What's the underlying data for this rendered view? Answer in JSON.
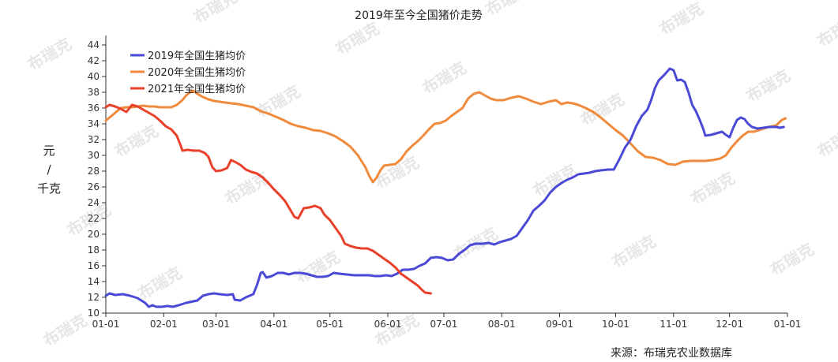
{
  "watermark": {
    "text": "布瑞克"
  },
  "source": {
    "text": "来源：布瑞克农业数据库"
  },
  "colors": {
    "s2019": "#4a4ad6",
    "s2020": "#f08a3c",
    "s2021": "#e8402a"
  },
  "chart_data": {
    "type": "line",
    "title": "2019年至今全国猪价走势",
    "xlabel": "",
    "ylabel": [
      "元",
      "/",
      "千克"
    ],
    "x_unit": "day_of_year",
    "x_range": [
      1,
      366
    ],
    "ylim": [
      10,
      45
    ],
    "y_ticks": [
      10,
      12,
      14,
      16,
      18,
      20,
      22,
      24,
      26,
      28,
      30,
      32,
      34,
      36,
      38,
      40,
      42,
      44
    ],
    "x_tick_labels": [
      "01-01",
      "02-01",
      "03-01",
      "04-01",
      "05-01",
      "06-01",
      "07-01",
      "08-01",
      "09-01",
      "10-01",
      "11-01",
      "12-01",
      "01-01"
    ],
    "x_tick_days": [
      1,
      32,
      60,
      91,
      121,
      152,
      182,
      213,
      244,
      274,
      305,
      335,
      366
    ],
    "grid": false,
    "legend_position": "top-left",
    "series": [
      {
        "name": "2019年全国生猪均价",
        "color": "#4a4ad6",
        "points": [
          [
            1,
            12.2
          ],
          [
            3,
            12.5
          ],
          [
            6,
            12.3
          ],
          [
            10,
            12.4
          ],
          [
            14,
            12.2
          ],
          [
            18,
            11.9
          ],
          [
            20,
            11.6
          ],
          [
            22,
            11.3
          ],
          [
            24,
            10.8
          ],
          [
            26,
            11.0
          ],
          [
            28,
            10.8
          ],
          [
            31,
            10.8
          ],
          [
            34,
            10.9
          ],
          [
            37,
            10.8
          ],
          [
            40,
            11.0
          ],
          [
            44,
            11.3
          ],
          [
            48,
            11.5
          ],
          [
            50,
            11.6
          ],
          [
            53,
            12.2
          ],
          [
            56,
            12.4
          ],
          [
            59,
            12.5
          ],
          [
            62,
            12.4
          ],
          [
            66,
            12.3
          ],
          [
            69,
            12.4
          ],
          [
            70,
            11.7
          ],
          [
            73,
            11.6
          ],
          [
            76,
            12.0
          ],
          [
            79,
            12.3
          ],
          [
            80,
            12.4
          ],
          [
            82,
            13.6
          ],
          [
            84,
            15.1
          ],
          [
            85,
            15.2
          ],
          [
            87,
            14.5
          ],
          [
            90,
            14.7
          ],
          [
            93,
            15.1
          ],
          [
            96,
            15.1
          ],
          [
            99,
            14.9
          ],
          [
            102,
            15.1
          ],
          [
            105,
            15.1
          ],
          [
            108,
            15.0
          ],
          [
            111,
            14.8
          ],
          [
            114,
            14.6
          ],
          [
            117,
            14.6
          ],
          [
            120,
            14.7
          ],
          [
            123,
            15.1
          ],
          [
            126,
            15.0
          ],
          [
            130,
            14.9
          ],
          [
            134,
            14.8
          ],
          [
            138,
            14.8
          ],
          [
            142,
            14.8
          ],
          [
            145,
            14.7
          ],
          [
            148,
            14.7
          ],
          [
            151,
            14.8
          ],
          [
            154,
            14.7
          ],
          [
            157,
            15.0
          ],
          [
            160,
            15.5
          ],
          [
            163,
            15.5
          ],
          [
            166,
            15.6
          ],
          [
            169,
            16.0
          ],
          [
            172,
            16.3
          ],
          [
            175,
            17.0
          ],
          [
            178,
            17.1
          ],
          [
            181,
            17.0
          ],
          [
            184,
            16.7
          ],
          [
            187,
            16.8
          ],
          [
            190,
            17.5
          ],
          [
            193,
            18.0
          ],
          [
            196,
            18.6
          ],
          [
            199,
            18.8
          ],
          [
            203,
            18.8
          ],
          [
            206,
            18.9
          ],
          [
            209,
            18.7
          ],
          [
            212,
            19.0
          ],
          [
            215,
            19.2
          ],
          [
            218,
            19.4
          ],
          [
            221,
            19.8
          ],
          [
            224,
            20.8
          ],
          [
            227,
            21.8
          ],
          [
            230,
            23.0
          ],
          [
            233,
            23.6
          ],
          [
            236,
            24.3
          ],
          [
            239,
            25.3
          ],
          [
            242,
            26.0
          ],
          [
            245,
            26.5
          ],
          [
            248,
            26.9
          ],
          [
            251,
            27.2
          ],
          [
            254,
            27.6
          ],
          [
            257,
            27.7
          ],
          [
            260,
            27.8
          ],
          [
            263,
            28.0
          ],
          [
            266,
            28.1
          ],
          [
            270,
            28.2
          ],
          [
            273,
            28.2
          ],
          [
            276,
            29.5
          ],
          [
            279,
            31.0
          ],
          [
            282,
            32.0
          ],
          [
            285,
            33.7
          ],
          [
            288,
            35.0
          ],
          [
            291,
            35.8
          ],
          [
            293,
            37.0
          ],
          [
            295,
            38.5
          ],
          [
            297,
            39.5
          ],
          [
            300,
            40.2
          ],
          [
            303,
            41.0
          ],
          [
            305,
            40.8
          ],
          [
            307,
            39.5
          ],
          [
            309,
            39.6
          ],
          [
            311,
            39.3
          ],
          [
            313,
            38.0
          ],
          [
            315,
            36.4
          ],
          [
            317,
            35.6
          ],
          [
            319,
            34.5
          ],
          [
            321,
            33.3
          ],
          [
            322,
            32.5
          ],
          [
            325,
            32.6
          ],
          [
            328,
            32.8
          ],
          [
            331,
            33.0
          ],
          [
            333,
            32.6
          ],
          [
            335,
            32.3
          ],
          [
            337,
            33.5
          ],
          [
            339,
            34.5
          ],
          [
            341,
            34.8
          ],
          [
            343,
            34.6
          ],
          [
            345,
            34.0
          ],
          [
            347,
            33.6
          ],
          [
            350,
            33.4
          ],
          [
            353,
            33.5
          ],
          [
            356,
            33.6
          ],
          [
            360,
            33.6
          ],
          [
            362,
            33.5
          ],
          [
            364,
            33.6
          ]
        ]
      },
      {
        "name": "2020年全国生猪均价",
        "color": "#f08a3c",
        "points": [
          [
            1,
            34.4
          ],
          [
            3,
            34.8
          ],
          [
            6,
            35.4
          ],
          [
            9,
            36.0
          ],
          [
            12,
            36.1
          ],
          [
            15,
            36.1
          ],
          [
            18,
            36.2
          ],
          [
            21,
            36.3
          ],
          [
            24,
            36.2
          ],
          [
            27,
            36.2
          ],
          [
            30,
            36.1
          ],
          [
            33,
            36.1
          ],
          [
            36,
            36.1
          ],
          [
            39,
            36.4
          ],
          [
            42,
            37.0
          ],
          [
            44,
            37.6
          ],
          [
            46,
            38.0
          ],
          [
            48,
            38.2
          ],
          [
            50,
            37.8
          ],
          [
            53,
            37.4
          ],
          [
            56,
            37.1
          ],
          [
            59,
            36.9
          ],
          [
            62,
            36.8
          ],
          [
            65,
            36.7
          ],
          [
            68,
            36.6
          ],
          [
            72,
            36.5
          ],
          [
            76,
            36.3
          ],
          [
            80,
            36.1
          ],
          [
            84,
            35.6
          ],
          [
            88,
            35.3
          ],
          [
            92,
            34.9
          ],
          [
            96,
            34.5
          ],
          [
            100,
            34.0
          ],
          [
            104,
            33.7
          ],
          [
            108,
            33.5
          ],
          [
            112,
            33.2
          ],
          [
            116,
            33.1
          ],
          [
            120,
            32.8
          ],
          [
            124,
            32.4
          ],
          [
            128,
            31.8
          ],
          [
            132,
            31.1
          ],
          [
            136,
            30.0
          ],
          [
            140,
            28.5
          ],
          [
            142,
            27.4
          ],
          [
            144,
            26.6
          ],
          [
            146,
            27.2
          ],
          [
            148,
            28.1
          ],
          [
            150,
            28.7
          ],
          [
            153,
            28.8
          ],
          [
            156,
            28.9
          ],
          [
            159,
            29.5
          ],
          [
            162,
            30.5
          ],
          [
            165,
            31.2
          ],
          [
            168,
            31.8
          ],
          [
            171,
            32.5
          ],
          [
            174,
            33.3
          ],
          [
            177,
            34.0
          ],
          [
            180,
            34.1
          ],
          [
            183,
            34.4
          ],
          [
            186,
            35.0
          ],
          [
            189,
            35.5
          ],
          [
            192,
            36.0
          ],
          [
            195,
            37.2
          ],
          [
            198,
            37.8
          ],
          [
            201,
            38.0
          ],
          [
            204,
            37.6
          ],
          [
            207,
            37.2
          ],
          [
            210,
            37.0
          ],
          [
            214,
            37.0
          ],
          [
            218,
            37.3
          ],
          [
            222,
            37.5
          ],
          [
            226,
            37.2
          ],
          [
            230,
            36.8
          ],
          [
            234,
            36.5
          ],
          [
            238,
            36.8
          ],
          [
            242,
            37.0
          ],
          [
            245,
            36.5
          ],
          [
            248,
            36.7
          ],
          [
            251,
            36.6
          ],
          [
            254,
            36.4
          ],
          [
            258,
            36.0
          ],
          [
            262,
            35.5
          ],
          [
            266,
            34.8
          ],
          [
            270,
            34.0
          ],
          [
            274,
            33.2
          ],
          [
            278,
            32.5
          ],
          [
            282,
            31.5
          ],
          [
            286,
            30.5
          ],
          [
            290,
            29.8
          ],
          [
            294,
            29.7
          ],
          [
            298,
            29.4
          ],
          [
            302,
            28.9
          ],
          [
            306,
            28.8
          ],
          [
            310,
            29.2
          ],
          [
            314,
            29.3
          ],
          [
            318,
            29.3
          ],
          [
            322,
            29.3
          ],
          [
            326,
            29.4
          ],
          [
            330,
            29.6
          ],
          [
            333,
            30.0
          ],
          [
            336,
            31.0
          ],
          [
            339,
            31.8
          ],
          [
            342,
            32.5
          ],
          [
            345,
            33.0
          ],
          [
            348,
            33.0
          ],
          [
            352,
            33.3
          ],
          [
            356,
            33.6
          ],
          [
            360,
            33.8
          ],
          [
            363,
            34.5
          ],
          [
            365,
            34.7
          ]
        ]
      },
      {
        "name": "2021年全国生猪均价",
        "color": "#e8402a",
        "points": [
          [
            1,
            36.1
          ],
          [
            3,
            36.4
          ],
          [
            6,
            36.2
          ],
          [
            9,
            35.9
          ],
          [
            12,
            35.5
          ],
          [
            15,
            36.4
          ],
          [
            18,
            36.2
          ],
          [
            21,
            35.8
          ],
          [
            24,
            35.4
          ],
          [
            27,
            35.0
          ],
          [
            30,
            34.4
          ],
          [
            33,
            33.7
          ],
          [
            36,
            33.3
          ],
          [
            39,
            32.5
          ],
          [
            41,
            31.3
          ],
          [
            42,
            30.6
          ],
          [
            45,
            30.7
          ],
          [
            48,
            30.6
          ],
          [
            51,
            30.6
          ],
          [
            54,
            30.3
          ],
          [
            56,
            29.8
          ],
          [
            58,
            28.5
          ],
          [
            60,
            28.0
          ],
          [
            63,
            28.1
          ],
          [
            66,
            28.4
          ],
          [
            68,
            29.4
          ],
          [
            70,
            29.2
          ],
          [
            73,
            28.8
          ],
          [
            76,
            28.2
          ],
          [
            79,
            27.9
          ],
          [
            82,
            27.7
          ],
          [
            85,
            27.2
          ],
          [
            88,
            26.5
          ],
          [
            91,
            25.7
          ],
          [
            94,
            25.0
          ],
          [
            97,
            24.2
          ],
          [
            100,
            23.0
          ],
          [
            102,
            22.2
          ],
          [
            104,
            22.0
          ],
          [
            107,
            23.3
          ],
          [
            110,
            23.4
          ],
          [
            113,
            23.6
          ],
          [
            116,
            23.3
          ],
          [
            118,
            22.5
          ],
          [
            121,
            21.8
          ],
          [
            124,
            20.8
          ],
          [
            127,
            19.8
          ],
          [
            129,
            18.8
          ],
          [
            132,
            18.5
          ],
          [
            135,
            18.3
          ],
          [
            138,
            18.2
          ],
          [
            141,
            18.2
          ],
          [
            144,
            17.9
          ],
          [
            147,
            17.4
          ],
          [
            150,
            16.9
          ],
          [
            153,
            16.4
          ],
          [
            156,
            15.8
          ],
          [
            159,
            15.0
          ],
          [
            162,
            14.5
          ],
          [
            165,
            14.0
          ],
          [
            168,
            13.5
          ],
          [
            170,
            13.0
          ],
          [
            172,
            12.6
          ],
          [
            175,
            12.5
          ]
        ]
      }
    ]
  }
}
